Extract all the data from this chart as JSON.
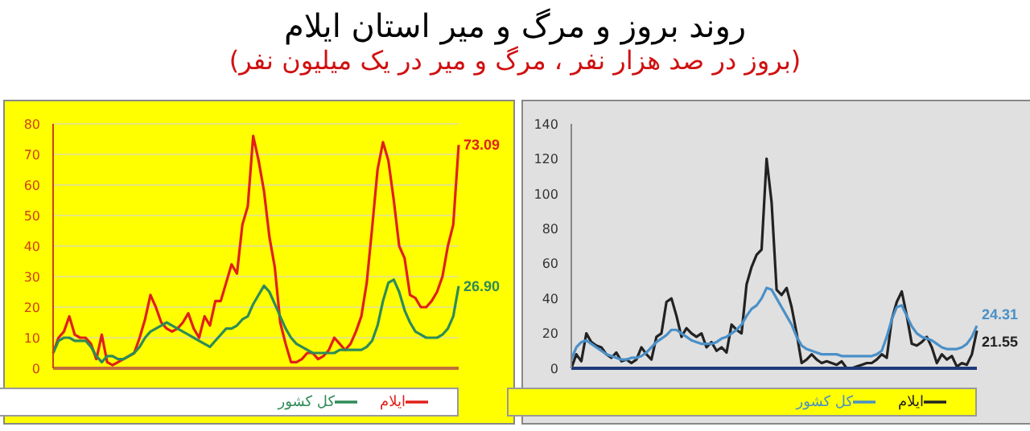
{
  "chart_data": [
    {
      "type": "line",
      "title": "روند بروز و مرگ و میر استان ایلام",
      "subtitle": "(بروز در صد هزار نفر ، مرگ و میر در یک میلیون نفر)",
      "categories": [
        null,
        null,
        null,
        null,
        null,
        null,
        null,
        null,
        null,
        null,
        null,
        null,
        null,
        null,
        null,
        null,
        null,
        null,
        null,
        null,
        null,
        null,
        null,
        null,
        null,
        null,
        null,
        null,
        null,
        null,
        null,
        null,
        null,
        null,
        null,
        null,
        null,
        null,
        null,
        null,
        null,
        null,
        null,
        null,
        null,
        null,
        null,
        null,
        null,
        null,
        null,
        null,
        null,
        null,
        null,
        null,
        null,
        null,
        null,
        null,
        null,
        null,
        null,
        null,
        null,
        null,
        null,
        null,
        null,
        null,
        null,
        null,
        null,
        null,
        null,
        null
      ],
      "series": [
        {
          "name": "ایلام",
          "color": "#e0201a",
          "values": [
            5,
            10,
            12,
            17,
            11,
            10,
            10,
            8,
            3,
            11,
            2,
            1,
            2,
            3,
            4,
            5,
            10,
            16,
            24,
            20,
            15,
            13,
            12,
            13,
            15,
            18,
            13,
            10,
            17,
            14,
            22,
            22,
            28,
            34,
            31,
            47,
            53,
            76,
            68,
            58,
            43,
            33,
            15,
            8,
            2,
            2,
            3,
            5,
            5,
            3,
            4,
            6,
            10,
            8,
            6,
            8,
            12,
            17,
            28,
            46,
            65,
            74,
            68,
            55,
            40,
            36,
            24,
            23,
            20,
            20,
            22,
            25,
            30,
            40,
            47,
            73.09
          ],
          "value_labels": [
            null,
            null,
            null,
            null,
            null,
            null,
            null,
            null,
            null,
            null,
            null,
            null,
            null,
            null,
            null,
            null,
            null,
            null,
            null,
            null,
            null,
            null,
            null,
            null,
            null,
            null,
            null,
            null,
            null,
            null,
            null,
            null,
            null,
            null,
            null,
            null,
            null,
            null,
            null,
            null,
            null,
            null,
            null,
            null,
            null,
            null,
            null,
            null,
            null,
            null,
            null,
            null,
            null,
            null,
            null,
            null,
            null,
            null,
            null,
            null,
            null,
            null,
            null,
            null,
            null,
            null,
            null,
            null,
            null,
            null,
            null,
            null,
            null,
            null,
            null,
            "73.09"
          ]
        },
        {
          "name": "کل کشور",
          "color": "#2e8b57",
          "values": [
            5,
            9,
            10,
            10,
            9,
            9,
            9,
            7,
            4,
            2,
            4,
            4,
            3,
            3,
            4,
            5,
            7,
            10,
            12,
            13,
            14,
            15,
            14,
            13,
            12,
            11,
            10,
            9,
            8,
            7,
            9,
            11,
            13,
            13,
            14,
            16,
            17,
            21,
            24,
            27,
            25,
            21,
            17,
            13,
            10,
            8,
            7,
            6,
            5,
            5,
            5,
            5,
            5,
            6,
            6,
            6,
            6,
            6,
            7,
            9,
            14,
            22,
            28,
            29,
            25,
            19,
            15,
            12,
            11,
            10,
            10,
            10,
            11,
            13,
            17,
            26.9
          ],
          "value_labels": [
            null,
            null,
            null,
            null,
            null,
            null,
            null,
            null,
            null,
            null,
            null,
            null,
            null,
            null,
            null,
            null,
            null,
            null,
            null,
            null,
            null,
            null,
            null,
            null,
            null,
            null,
            null,
            null,
            null,
            null,
            null,
            null,
            null,
            null,
            null,
            null,
            null,
            null,
            null,
            null,
            null,
            null,
            null,
            null,
            null,
            null,
            null,
            null,
            null,
            null,
            null,
            null,
            null,
            null,
            null,
            null,
            null,
            null,
            null,
            null,
            null,
            null,
            null,
            null,
            null,
            null,
            null,
            null,
            null,
            null,
            null,
            null,
            null,
            null,
            null,
            "26.90"
          ]
        }
      ],
      "ylim": [
        0,
        80
      ],
      "yticks": [
        0,
        10,
        20,
        30,
        40,
        50,
        60,
        70,
        80
      ],
      "grid": "y",
      "legend": "bottom right",
      "marker": "none",
      "line_style": "solid"
    },
    {
      "type": "line",
      "categories": [
        null,
        null,
        null,
        null,
        null,
        null,
        null,
        null,
        null,
        null,
        null,
        null,
        null,
        null,
        null,
        null,
        null,
        null,
        null,
        null,
        null,
        null,
        null,
        null,
        null,
        null,
        null,
        null,
        null,
        null,
        null,
        null,
        null,
        null,
        null,
        null,
        null,
        null,
        null,
        null,
        null,
        null,
        null,
        null,
        null,
        null,
        null,
        null,
        null,
        null,
        null,
        null,
        null,
        null,
        null,
        null,
        null,
        null,
        null,
        null,
        null,
        null,
        null,
        null,
        null,
        null,
        null,
        null,
        null,
        null,
        null,
        null,
        null,
        null,
        null,
        null,
        null,
        null,
        null,
        null,
        null,
        null
      ],
      "series": [
        {
          "name": "ایلام",
          "color": "#222222",
          "values": [
            0,
            8,
            4,
            20,
            15,
            13,
            12,
            8,
            6,
            9,
            4,
            5,
            3,
            5,
            12,
            8,
            5,
            18,
            20,
            38,
            40,
            30,
            18,
            23,
            20,
            18,
            20,
            12,
            15,
            10,
            12,
            9,
            25,
            22,
            20,
            48,
            58,
            65,
            68,
            120,
            95,
            45,
            42,
            46,
            35,
            20,
            3,
            5,
            8,
            5,
            3,
            4,
            3,
            2,
            4,
            0,
            0,
            1,
            2,
            3,
            3,
            5,
            8,
            6,
            28,
            38,
            44,
            30,
            14,
            13,
            15,
            18,
            12,
            3,
            8,
            5,
            7,
            1,
            3,
            2,
            8,
            21.55
          ],
          "value_labels": [
            null,
            null,
            null,
            null,
            null,
            null,
            null,
            null,
            null,
            null,
            null,
            null,
            null,
            null,
            null,
            null,
            null,
            null,
            null,
            null,
            null,
            null,
            null,
            null,
            null,
            null,
            null,
            null,
            null,
            null,
            null,
            null,
            null,
            null,
            null,
            null,
            null,
            null,
            null,
            null,
            null,
            null,
            null,
            null,
            null,
            null,
            null,
            null,
            null,
            null,
            null,
            null,
            null,
            null,
            null,
            null,
            null,
            null,
            null,
            null,
            null,
            null,
            null,
            null,
            null,
            null,
            null,
            null,
            null,
            null,
            null,
            null,
            null,
            null,
            null,
            null,
            null,
            null,
            null,
            null,
            null,
            "21.55"
          ]
        },
        {
          "name": "کل کشور",
          "color": "#4a90c8",
          "values": [
            5,
            12,
            15,
            16,
            14,
            12,
            10,
            8,
            7,
            6,
            5,
            5,
            6,
            6,
            7,
            9,
            12,
            15,
            17,
            19,
            22,
            22,
            20,
            18,
            16,
            15,
            14,
            14,
            14,
            15,
            17,
            18,
            20,
            22,
            25,
            30,
            34,
            36,
            40,
            46,
            45,
            40,
            35,
            30,
            25,
            18,
            13,
            11,
            10,
            9,
            8,
            8,
            8,
            8,
            7,
            7,
            7,
            7,
            7,
            7,
            7,
            8,
            10,
            18,
            28,
            35,
            36,
            30,
            24,
            20,
            18,
            17,
            16,
            14,
            12,
            11,
            11,
            11,
            12,
            14,
            18,
            24.31
          ],
          "value_labels": [
            null,
            null,
            null,
            null,
            null,
            null,
            null,
            null,
            null,
            null,
            null,
            null,
            null,
            null,
            null,
            null,
            null,
            null,
            null,
            null,
            null,
            null,
            null,
            null,
            null,
            null,
            null,
            null,
            null,
            null,
            null,
            null,
            null,
            null,
            null,
            null,
            null,
            null,
            null,
            null,
            null,
            null,
            null,
            null,
            null,
            null,
            null,
            null,
            null,
            null,
            null,
            null,
            null,
            null,
            null,
            null,
            null,
            null,
            null,
            null,
            null,
            null,
            null,
            null,
            null,
            null,
            null,
            null,
            null,
            null,
            null,
            null,
            null,
            null,
            null,
            null,
            null,
            null,
            null,
            null,
            null,
            "24.31"
          ]
        }
      ],
      "ylim": [
        0,
        140
      ],
      "yticks": [
        0,
        20,
        40,
        60,
        80,
        100,
        120,
        140
      ],
      "legend": "bottom right",
      "marker": "none",
      "line_style": "solid"
    }
  ]
}
